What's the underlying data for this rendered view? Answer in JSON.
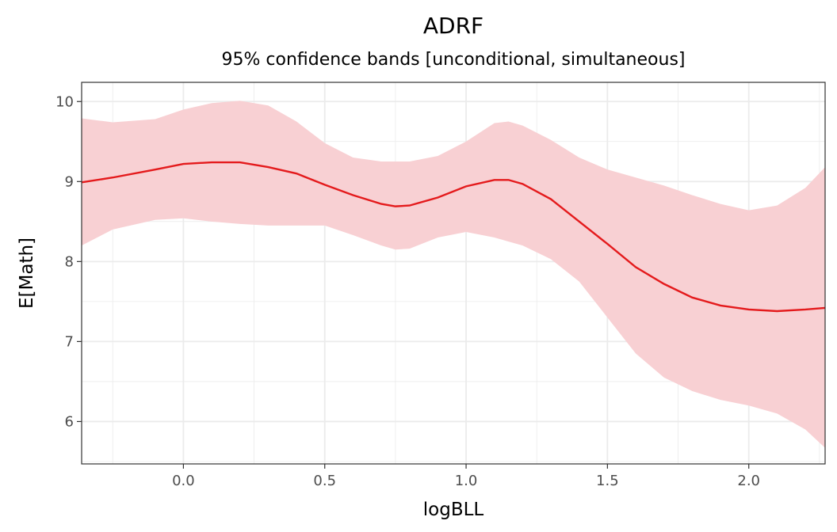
{
  "chart_data": {
    "type": "line",
    "title": "ADRF",
    "subtitle": "95% confidence bands [unconditional, simultaneous]",
    "xlabel": "logBLL",
    "ylabel": "E[Math]",
    "xlim": [
      -0.36,
      2.27
    ],
    "ylim": [
      5.47,
      10.24
    ],
    "xticks": [
      0.0,
      0.5,
      1.0,
      1.5,
      2.0
    ],
    "xtick_labels": [
      "0.0",
      "0.5",
      "1.0",
      "1.5",
      "2.0"
    ],
    "yticks": [
      6,
      7,
      8,
      9,
      10
    ],
    "ytick_labels": [
      "6",
      "7",
      "8",
      "9",
      "10"
    ],
    "grid": true,
    "colors": {
      "line": "#e41a1c",
      "band": "#f8d0d3",
      "grid": "#ebebeb",
      "border": "#333333"
    },
    "x": [
      -0.36,
      -0.25,
      -0.1,
      0,
      0.1,
      0.2,
      0.3,
      0.4,
      0.5,
      0.6,
      0.7,
      0.75,
      0.8,
      0.9,
      1.0,
      1.1,
      1.15,
      1.2,
      1.3,
      1.4,
      1.5,
      1.6,
      1.7,
      1.8,
      1.9,
      2.0,
      2.1,
      2.2,
      2.27
    ],
    "estimate": [
      8.99,
      9.05,
      9.15,
      9.22,
      9.24,
      9.24,
      9.18,
      9.1,
      8.96,
      8.83,
      8.72,
      8.69,
      8.7,
      8.8,
      8.94,
      9.02,
      9.02,
      8.97,
      8.78,
      8.5,
      8.22,
      7.93,
      7.72,
      7.55,
      7.45,
      7.4,
      7.38,
      7.4,
      7.42
    ],
    "upper": [
      9.79,
      9.74,
      9.78,
      9.9,
      9.98,
      10.01,
      9.95,
      9.75,
      9.48,
      9.3,
      9.25,
      9.25,
      9.25,
      9.32,
      9.5,
      9.73,
      9.75,
      9.7,
      9.52,
      9.3,
      9.15,
      9.05,
      8.95,
      8.83,
      8.72,
      8.64,
      8.7,
      8.92,
      9.18
    ],
    "lower": [
      8.2,
      8.4,
      8.52,
      8.54,
      8.5,
      8.47,
      8.45,
      8.45,
      8.45,
      8.33,
      8.2,
      8.15,
      8.16,
      8.3,
      8.37,
      8.3,
      8.25,
      8.2,
      8.03,
      7.75,
      7.3,
      6.85,
      6.55,
      6.38,
      6.27,
      6.2,
      6.1,
      5.9,
      5.67
    ]
  }
}
